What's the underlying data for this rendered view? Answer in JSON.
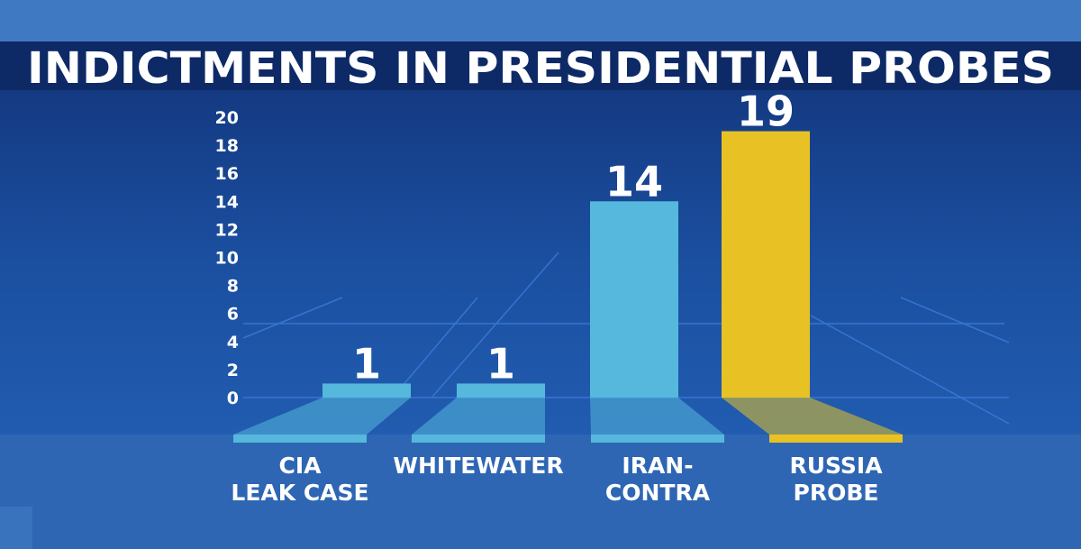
{
  "chart_data": {
    "type": "bar",
    "title": "INDICTMENTS IN PRESIDENTIAL PROBES",
    "categories": [
      [
        "CIA",
        "LEAK CASE"
      ],
      [
        "WHITEWATER"
      ],
      [
        "IRAN-",
        "CONTRA"
      ],
      [
        "RUSSIA",
        "PROBE"
      ]
    ],
    "values": [
      1,
      1,
      14,
      19
    ],
    "value_labels": [
      "1",
      "1",
      "14",
      "19"
    ],
    "yticks": [
      "0",
      "2",
      "4",
      "6",
      "8",
      "10",
      "12",
      "14",
      "16",
      "18",
      "20"
    ],
    "ylim": [
      0,
      20
    ],
    "bar_colors": [
      "#55b8dc",
      "#55b8dc",
      "#55b8dc",
      "#e8c225"
    ],
    "xlabel": "",
    "ylabel": ""
  }
}
